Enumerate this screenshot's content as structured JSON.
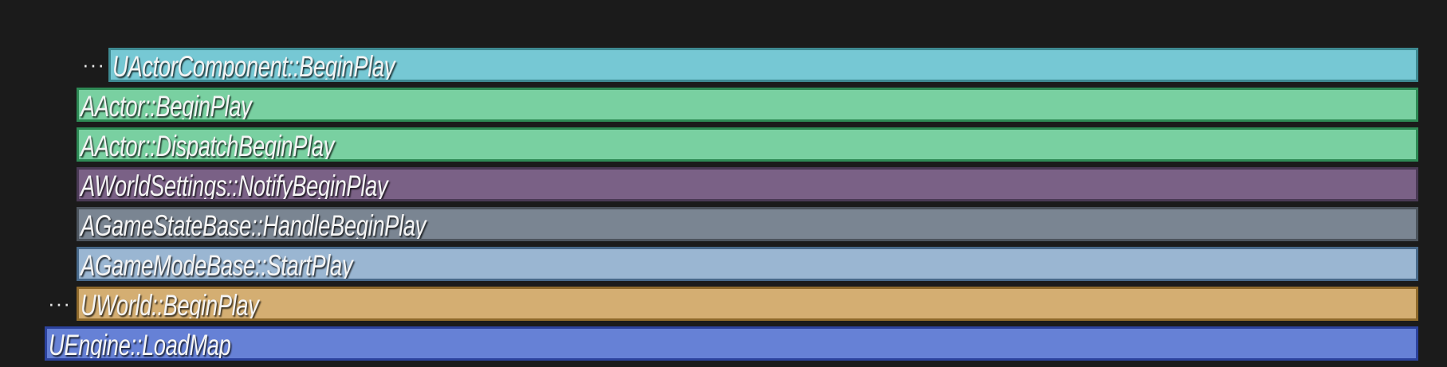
{
  "stack": [
    {
      "label": "UActorComponent::BeginPlay",
      "fill": "#76c8d4",
      "border": "#3e8a92",
      "collapsed": true
    },
    {
      "label": "AActor::BeginPlay",
      "fill": "#79d0a1",
      "border": "#2e8a55",
      "collapsed": false
    },
    {
      "label": "AActor::DispatchBeginPlay",
      "fill": "#79d0a1",
      "border": "#2e8a55",
      "collapsed": false
    },
    {
      "label": "AWorldSettings::NotifyBeginPlay",
      "fill": "#7a6186",
      "border": "#4a3a55",
      "collapsed": false
    },
    {
      "label": "AGameStateBase::HandleBeginPlay",
      "fill": "#7a8592",
      "border": "#4c545d",
      "collapsed": false
    },
    {
      "label": "AGameModeBase::StartPlay",
      "fill": "#9ab6d2",
      "border": "#48698a",
      "collapsed": false
    },
    {
      "label": "UWorld::BeginPlay",
      "fill": "#d4ae72",
      "border": "#8f6a2c",
      "collapsed": true
    },
    {
      "label": "UEngine::LoadMap",
      "fill": "#6681d6",
      "border": "#2c439e",
      "collapsed": false
    }
  ],
  "ellipsis": "···"
}
